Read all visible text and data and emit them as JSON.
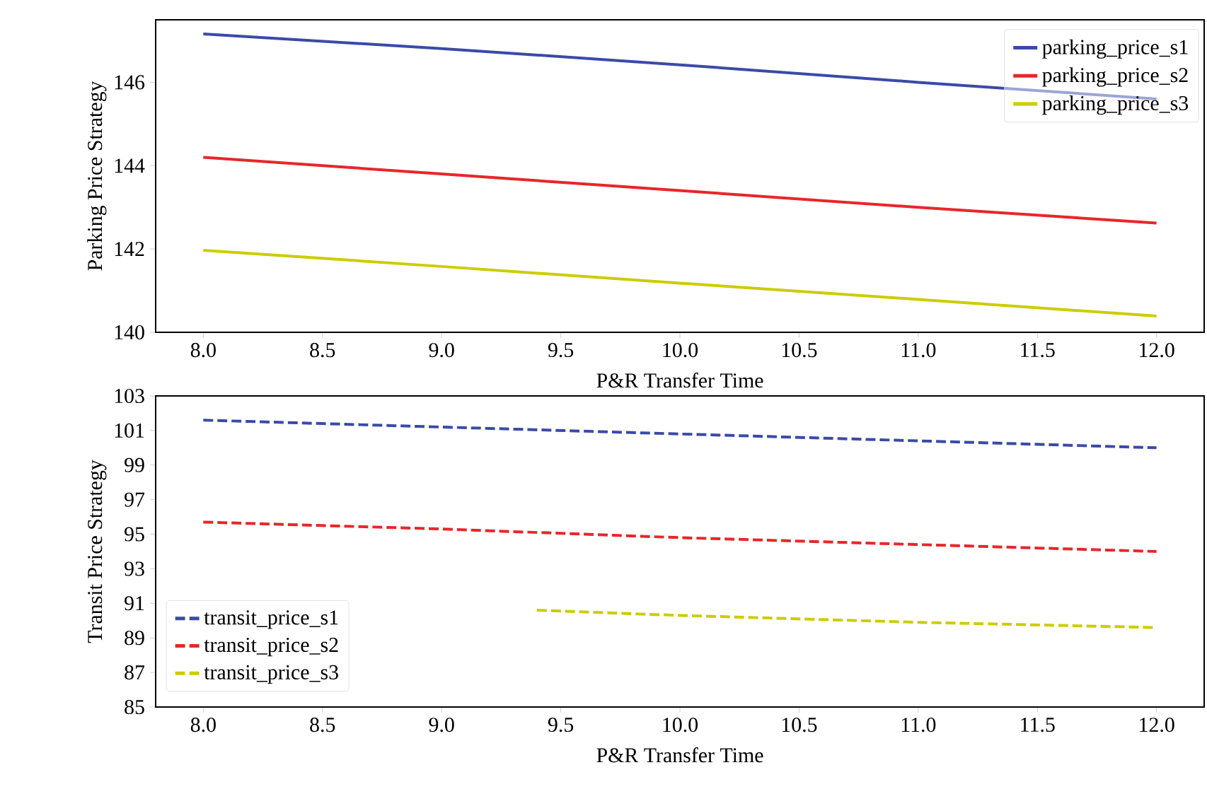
{
  "chart_data": [
    {
      "type": "line",
      "xlabel": "P&R Transfer Time",
      "ylabel": "Parking Price Strategy",
      "xlim": [
        7.8,
        12.2
      ],
      "ylim": [
        140,
        147.5
      ],
      "xticks": [
        {
          "value": 8,
          "label": "8.0"
        },
        {
          "value": 8.5,
          "label": "8.5"
        },
        {
          "value": 9,
          "label": "9.0"
        },
        {
          "value": 9.5,
          "label": "9.5"
        },
        {
          "value": 10,
          "label": "10.0"
        },
        {
          "value": 10.5,
          "label": "10.5"
        },
        {
          "value": 11,
          "label": "11.0"
        },
        {
          "value": 11.5,
          "label": "11.5"
        },
        {
          "value": 12,
          "label": "12.0"
        }
      ],
      "yticks": [
        140,
        142,
        144,
        146
      ],
      "legend": "top right",
      "line_style": "solid",
      "x": [
        8,
        9,
        10,
        11,
        12
      ],
      "series": [
        {
          "name": "parking_price_s1",
          "color": "#3a4aa8",
          "values": [
            147.16,
            146.81,
            146.42,
            146.0,
            145.6
          ]
        },
        {
          "name": "parking_price_s2",
          "color": "#e8262a",
          "values": [
            144.2,
            143.8,
            143.4,
            143.0,
            142.62
          ]
        },
        {
          "name": "parking_price_s3",
          "color": "#cccc00",
          "values": [
            141.97,
            141.58,
            141.18,
            140.79,
            140.39
          ]
        }
      ]
    },
    {
      "type": "line",
      "xlabel": "P&R Transfer Time",
      "ylabel": "Transit Price Strategy",
      "xlim": [
        7.8,
        12.2
      ],
      "ylim": [
        85,
        103
      ],
      "xticks": [
        {
          "value": 8,
          "label": "8.0"
        },
        {
          "value": 8.5,
          "label": "8.5"
        },
        {
          "value": 9,
          "label": "9.0"
        },
        {
          "value": 9.5,
          "label": "9.5"
        },
        {
          "value": 10,
          "label": "10.0"
        },
        {
          "value": 10.5,
          "label": "10.5"
        },
        {
          "value": 11,
          "label": "11.0"
        },
        {
          "value": 11.5,
          "label": "11.5"
        },
        {
          "value": 12,
          "label": "12.0"
        }
      ],
      "yticks": [
        85,
        87,
        89,
        91,
        93,
        95,
        97,
        99,
        101,
        103
      ],
      "legend": "bottom left",
      "line_style": "dashed",
      "x": [
        8,
        9,
        10,
        11,
        12
      ],
      "series": [
        {
          "name": "transit_price_s1",
          "color": "#3a4aa8",
          "values": [
            101.6,
            101.2,
            100.8,
            100.4,
            100.0
          ]
        },
        {
          "name": "transit_price_s2",
          "color": "#e8262a",
          "values": [
            95.7,
            95.3,
            94.8,
            94.4,
            94.0
          ]
        },
        {
          "name": "transit_price_s3",
          "color": "#cccc00",
          "x": [
            9.4,
            10,
            11,
            12
          ],
          "values": [
            90.6,
            90.3,
            89.9,
            89.6
          ]
        }
      ]
    }
  ]
}
